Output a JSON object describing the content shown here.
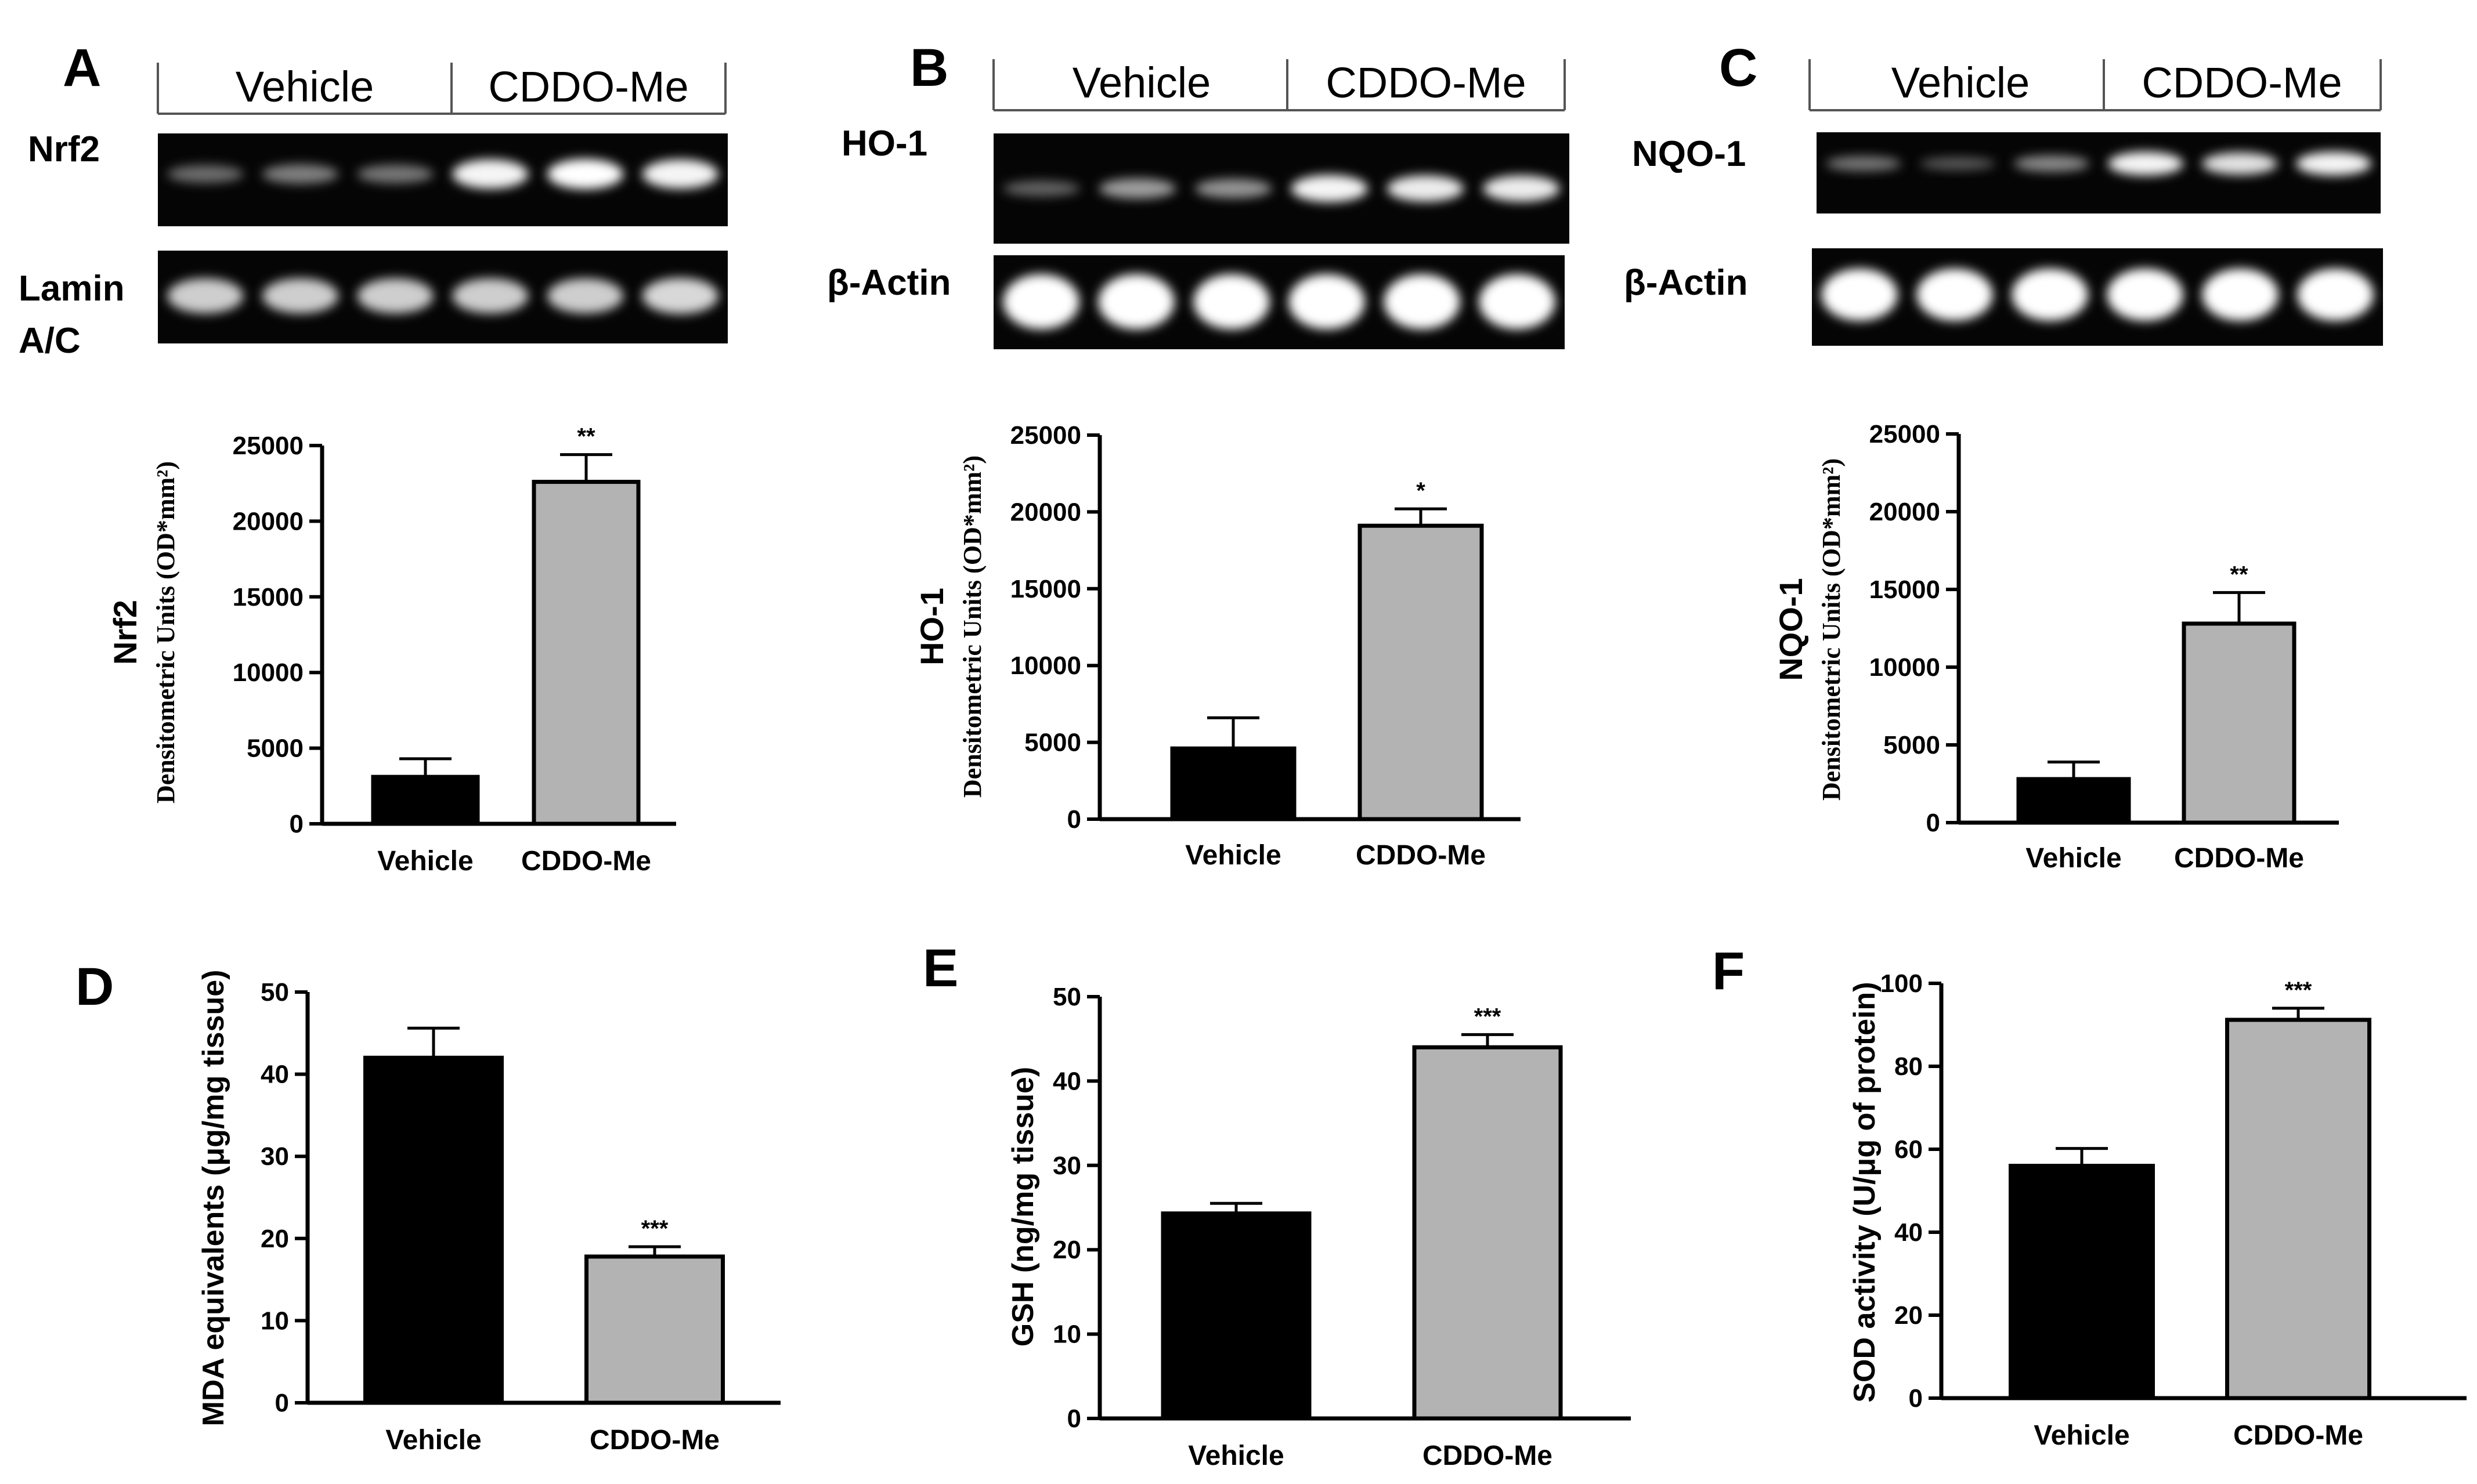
{
  "panels": {
    "a": {
      "letter": "A"
    },
    "b": {
      "letter": "B"
    },
    "c": {
      "letter": "C"
    },
    "d": {
      "letter": "D"
    },
    "e": {
      "letter": "E"
    },
    "f": {
      "letter": "F"
    }
  },
  "blots": {
    "a": {
      "group_labels": [
        "Vehicle",
        "CDDO-Me"
      ],
      "target_label_line1": "Nrf2",
      "loading_label_line1": "Lamin",
      "loading_label_line2": "A/C",
      "target_band_intensity": [
        0.25,
        0.35,
        0.3,
        0.95,
        1.0,
        0.95
      ],
      "loading_band_intensity": [
        0.75,
        0.75,
        0.75,
        0.75,
        0.75,
        0.8
      ]
    },
    "b": {
      "group_labels": [
        "Vehicle",
        "CDDO-Me"
      ],
      "target_label_line1": "HO-1",
      "loading_label_line1": "β-Actin",
      "target_band_intensity": [
        0.2,
        0.5,
        0.45,
        0.95,
        0.9,
        0.9
      ],
      "loading_band_intensity": [
        1.0,
        1.0,
        1.0,
        1.0,
        1.0,
        1.0
      ]
    },
    "c": {
      "group_labels": [
        "Vehicle",
        "CDDO-Me"
      ],
      "target_label_line1": "NQO-1",
      "loading_label_line1": "β-Actin",
      "target_band_intensity": [
        0.3,
        0.15,
        0.4,
        0.95,
        0.85,
        0.95
      ],
      "loading_band_intensity": [
        1.0,
        1.0,
        1.0,
        1.0,
        1.0,
        1.0
      ]
    }
  },
  "chart_data": [
    {
      "panel": "A",
      "type": "bar",
      "categories": [
        "Vehicle",
        "CDDO-Me"
      ],
      "values": [
        3100,
        22600
      ],
      "errors": [
        1200,
        1800
      ],
      "significance": [
        "",
        "**"
      ],
      "ylabel_main": "Nrf2",
      "ylabel_sub": "Densitometric Units (OD*mm²)",
      "ylim": [
        0,
        25000
      ],
      "yticks": [
        0,
        5000,
        10000,
        15000,
        20000,
        25000
      ],
      "colors": [
        "#000000",
        "#b3b3b3"
      ]
    },
    {
      "panel": "B",
      "type": "bar",
      "categories": [
        "Vehicle",
        "CDDO-Me"
      ],
      "values": [
        4600,
        19100
      ],
      "errors": [
        2000,
        1100
      ],
      "significance": [
        "",
        "*"
      ],
      "ylabel_main": "HO-1",
      "ylabel_sub": "Densitometric Units (OD*mm²)",
      "ylim": [
        0,
        25000
      ],
      "yticks": [
        0,
        5000,
        10000,
        15000,
        20000,
        25000
      ],
      "colors": [
        "#000000",
        "#b3b3b3"
      ]
    },
    {
      "panel": "C",
      "type": "bar",
      "categories": [
        "Vehicle",
        "CDDO-Me"
      ],
      "values": [
        2800,
        12800
      ],
      "errors": [
        1100,
        2000
      ],
      "significance": [
        "",
        "**"
      ],
      "ylabel_main": "NQO-1",
      "ylabel_sub": "Densitometric Units (OD*mm²)",
      "ylim": [
        0,
        25000
      ],
      "yticks": [
        0,
        5000,
        10000,
        15000,
        20000,
        25000
      ],
      "colors": [
        "#000000",
        "#b3b3b3"
      ]
    },
    {
      "panel": "D",
      "type": "bar",
      "categories": [
        "Vehicle",
        "CDDO-Me"
      ],
      "values": [
        42,
        17.8
      ],
      "errors": [
        3.6,
        1.2
      ],
      "significance": [
        "",
        "***"
      ],
      "ylabel": "MDA equivalents (μg/mg tissue)",
      "ylim": [
        0,
        50
      ],
      "yticks": [
        0,
        10,
        20,
        30,
        40,
        50
      ],
      "colors": [
        "#000000",
        "#b3b3b3"
      ]
    },
    {
      "panel": "E",
      "type": "bar",
      "categories": [
        "Vehicle",
        "CDDO-Me"
      ],
      "values": [
        24.3,
        44
      ],
      "errors": [
        1.2,
        1.5
      ],
      "significance": [
        "",
        "***"
      ],
      "ylabel": "GSH (ng/mg tissue)",
      "ylim": [
        0,
        50
      ],
      "yticks": [
        0,
        10,
        20,
        30,
        40,
        50
      ],
      "colors": [
        "#000000",
        "#b3b3b3"
      ]
    },
    {
      "panel": "F",
      "type": "bar",
      "categories": [
        "Vehicle",
        "CDDO-Me"
      ],
      "values": [
        56,
        91.2
      ],
      "errors": [
        4.2,
        2.8
      ],
      "significance": [
        "",
        "***"
      ],
      "ylabel": "SOD activity (U/μg of protein)",
      "ylim": [
        0,
        100
      ],
      "yticks": [
        0,
        20,
        40,
        60,
        80,
        100
      ],
      "colors": [
        "#000000",
        "#b3b3b3"
      ]
    }
  ]
}
